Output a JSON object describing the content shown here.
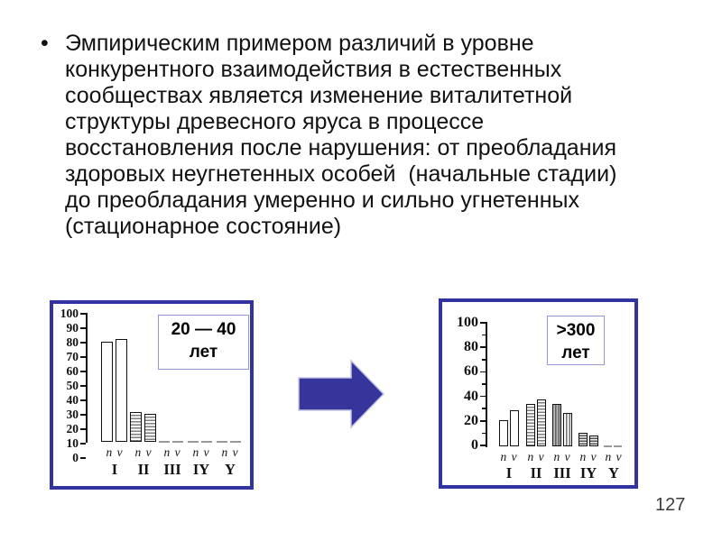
{
  "page": {
    "number": "127"
  },
  "bullet": {
    "marker": "•",
    "lines": [
      "Эмпирическим примером различий в уровне",
      "конкурентного взаимодействия в естественных",
      "сообществах является изменение виталитетной",
      "структуры древесного яруса в процессе",
      "восстановления после нарушения: от преобладания",
      "здоровых неугнетенных особей  (начальные стадии)",
      "до преобладания умеренно и сильно угнетенных",
      "(стационарное состояние)"
    ]
  },
  "arrow": {
    "color": "#35359B",
    "direction": "right"
  },
  "colors": {
    "frame": "#3232A0",
    "axis": "#111111"
  },
  "chart_data": [
    {
      "type": "bar",
      "title": "20 — 40 лет",
      "title_lines": [
        "20 — 40",
        "лет"
      ],
      "ylim": [
        0,
        100
      ],
      "yticks": [
        100,
        90,
        80,
        70,
        60,
        50,
        40,
        30,
        20,
        10,
        0
      ],
      "categories": [
        "I",
        "II",
        "III",
        "IY",
        "Y"
      ],
      "pair_label": "n v",
      "series": [
        {
          "name": "n",
          "values": [
            78,
            23,
            0,
            0,
            0
          ]
        },
        {
          "name": "v",
          "values": [
            80,
            22,
            0,
            0,
            0
          ]
        }
      ],
      "legend": "none",
      "grid": false
    },
    {
      "type": "bar",
      "title": ">300 лет",
      "title_lines": [
        ">300",
        "лет"
      ],
      "ylim": [
        0,
        100
      ],
      "yticks": [
        100,
        80,
        60,
        40,
        20,
        0
      ],
      "categories": [
        "I",
        "II",
        "III",
        "IY",
        "Y"
      ],
      "pair_label": "n v",
      "series": [
        {
          "name": "n",
          "values": [
            21,
            34,
            34,
            11,
            0
          ]
        },
        {
          "name": "v",
          "values": [
            29,
            38,
            27,
            9,
            0
          ]
        }
      ],
      "legend": "none",
      "grid": false
    }
  ]
}
